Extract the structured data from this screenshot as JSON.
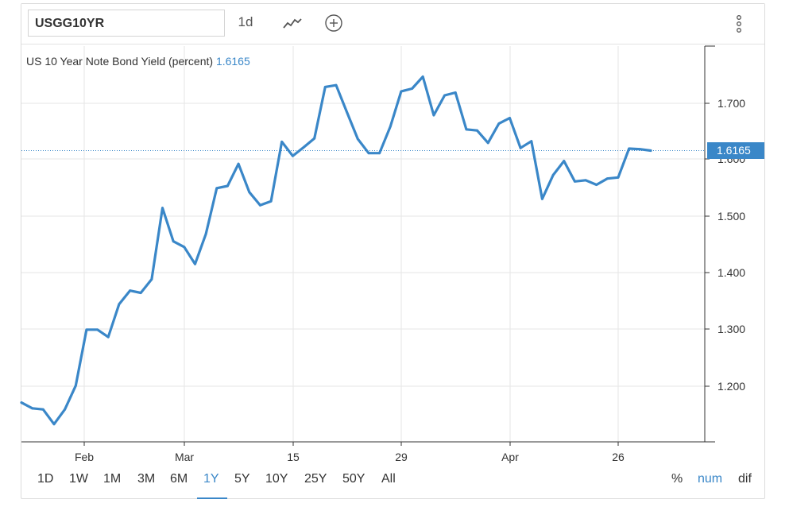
{
  "toolbar": {
    "ticker": "USGG10YR",
    "interval": "1d",
    "icons": [
      "line-chart-icon",
      "add-circle-icon",
      "more-vertical-icon"
    ]
  },
  "chart_title": {
    "name": "US 10 Year Note Bond Yield (percent)",
    "value": "1.6165"
  },
  "last_value_tag": "1.6165",
  "ranges": [
    "1D",
    "1W",
    "1M",
    "3M",
    "6M",
    "1Y",
    "5Y",
    "10Y",
    "25Y",
    "50Y",
    "All"
  ],
  "active_range": "1Y",
  "modes": [
    "%",
    "num",
    "dif"
  ],
  "active_mode": "num",
  "colors": {
    "series": "#3a87c8",
    "grid": "#e6e6e6",
    "axis": "#333333",
    "accent": "#3a87c8"
  },
  "chart_data": {
    "type": "line",
    "title": "US 10 Year Note Bond Yield (percent)",
    "xlabel": "",
    "ylabel": "",
    "x_ticks": [
      "Feb",
      "Mar",
      "15",
      "29",
      "Apr",
      "26"
    ],
    "y_ticks": [
      "1.200",
      "1.300",
      "1.400",
      "1.500",
      "1.600",
      "1.700"
    ],
    "ylim": [
      1.09,
      1.79
    ],
    "grid": true,
    "series": [
      {
        "values": [
          1.171,
          1.161,
          1.159,
          1.133,
          1.159,
          1.201,
          1.3,
          1.3,
          1.287,
          1.345,
          1.369,
          1.365,
          1.389,
          1.515,
          1.456,
          1.446,
          1.416,
          1.469,
          1.55,
          1.554,
          1.593,
          1.543,
          1.52,
          1.527,
          1.632,
          1.607,
          1.622,
          1.638,
          1.729,
          1.732,
          1.684,
          1.637,
          1.612,
          1.612,
          1.659,
          1.721,
          1.726,
          1.747,
          1.679,
          1.714,
          1.719,
          1.654,
          1.652,
          1.63,
          1.664,
          1.674,
          1.621,
          1.633,
          1.531,
          1.573,
          1.598,
          1.562,
          1.564,
          1.556,
          1.567,
          1.569,
          1.62,
          1.619,
          1.6165
        ]
      }
    ]
  }
}
